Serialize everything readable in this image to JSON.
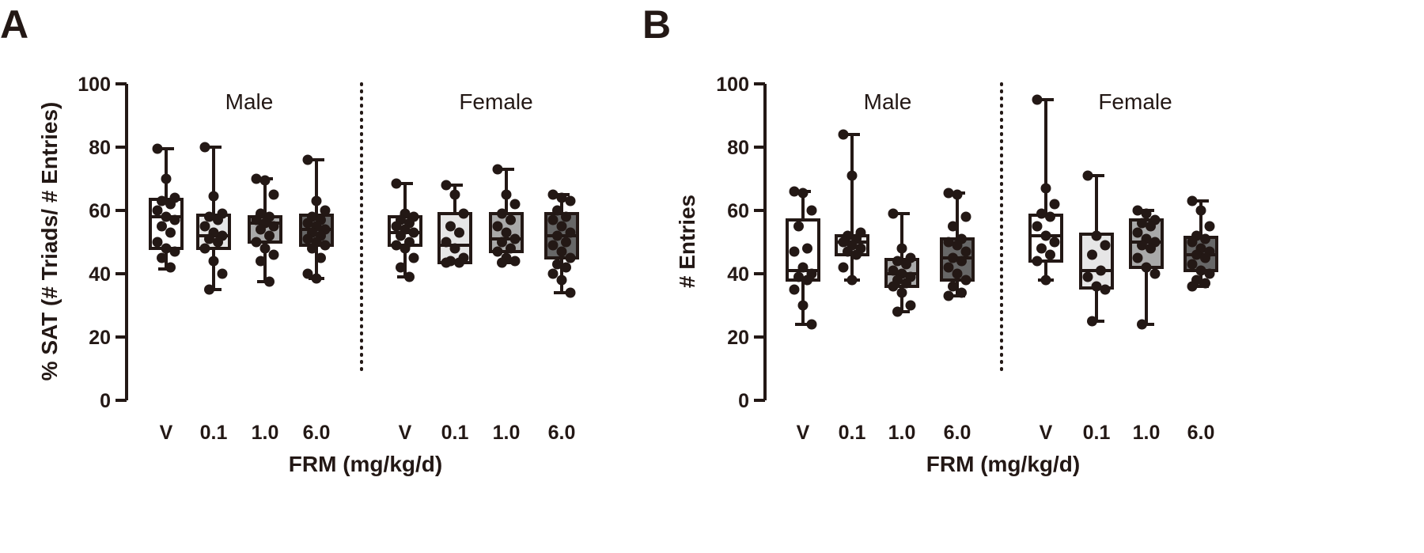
{
  "chart_data": [
    {
      "type": "boxplot",
      "panel_label": "A",
      "ylabel": "% SAT (# Triads/ # Entries)",
      "xlabel": "FRM (mg/kg/d)",
      "ylim": [
        0,
        100
      ],
      "yticks": [
        "0",
        "20",
        "40",
        "60",
        "80",
        "100"
      ],
      "categories": [
        "V",
        "0.1",
        "1.0",
        "6.0",
        "V",
        "0.1",
        "1.0",
        "6.0"
      ],
      "groups": [
        "Male",
        "Female"
      ],
      "fill_colors": [
        "#ffffff",
        "#e6e6e6",
        "#a9a9a9",
        "#676767",
        "#ffffff",
        "#e6e6e6",
        "#a9a9a9",
        "#676767"
      ],
      "boxes": [
        {
          "group": "Male",
          "dose": "V",
          "min": 41.5,
          "q1": 48,
          "median": 58,
          "q3": 63.5,
          "max": 79.5,
          "points": [
            79.5,
            70,
            64,
            63,
            62,
            60,
            58,
            57,
            55,
            53,
            50,
            48,
            47,
            45,
            42
          ]
        },
        {
          "group": "Male",
          "dose": "0.1",
          "min": 35,
          "q1": 48,
          "median": 52,
          "q3": 58.5,
          "max": 80,
          "points": [
            80,
            64.5,
            59,
            58,
            57,
            55,
            53,
            52,
            51,
            50,
            48,
            44,
            40,
            35
          ]
        },
        {
          "group": "Male",
          "dose": "1.0",
          "min": 37.5,
          "q1": 50,
          "median": 56,
          "q3": 58,
          "max": 70,
          "points": [
            70,
            69.5,
            65,
            59,
            58,
            57,
            56,
            55,
            54,
            52,
            50,
            48,
            46,
            44,
            37.5
          ]
        },
        {
          "group": "Male",
          "dose": "6.0",
          "min": 38.5,
          "q1": 49,
          "median": 54,
          "q3": 58.5,
          "max": 76,
          "points": [
            76,
            63,
            60,
            58,
            57,
            56,
            55,
            54,
            53,
            52,
            51,
            50,
            49,
            48,
            45,
            40,
            38.5
          ]
        },
        {
          "group": "Female",
          "dose": "V",
          "min": 39,
          "q1": 49,
          "median": 53,
          "q3": 58,
          "max": 68.5,
          "points": [
            68.5,
            59,
            58,
            57,
            56,
            55,
            54,
            53,
            52,
            50,
            49,
            48,
            45,
            42,
            39
          ]
        },
        {
          "group": "Female",
          "dose": "0.1",
          "min": 43.5,
          "q1": 43.5,
          "median": 49,
          "q3": 59,
          "max": 68,
          "points": [
            68,
            65,
            59,
            55,
            53,
            50,
            48,
            45,
            44,
            43.5,
            43.5
          ]
        },
        {
          "group": "Female",
          "dose": "1.0",
          "min": 43.5,
          "q1": 47,
          "median": 51,
          "q3": 59,
          "max": 73,
          "points": [
            73,
            65,
            62,
            59,
            57,
            55,
            53,
            51,
            50,
            48,
            47,
            45,
            44,
            43.5
          ]
        },
        {
          "group": "Female",
          "dose": "6.0",
          "min": 34,
          "q1": 45,
          "median": 52,
          "q3": 59,
          "max": 65,
          "points": [
            65,
            64,
            63,
            60,
            58,
            57,
            55,
            53,
            52,
            50,
            49,
            47,
            45,
            43,
            42,
            40,
            38,
            34
          ]
        }
      ]
    },
    {
      "type": "boxplot",
      "panel_label": "B",
      "ylabel": "# Entries",
      "xlabel": "FRM (mg/kg/d)",
      "ylim": [
        0,
        100
      ],
      "yticks": [
        "0",
        "20",
        "40",
        "60",
        "80",
        "100"
      ],
      "categories": [
        "V",
        "0.1",
        "1.0",
        "6.0",
        "V",
        "0.1",
        "1.0",
        "6.0"
      ],
      "groups": [
        "Male",
        "Female"
      ],
      "fill_colors": [
        "#ffffff",
        "#e6e6e6",
        "#a9a9a9",
        "#676767",
        "#ffffff",
        "#e6e6e6",
        "#a9a9a9",
        "#676767"
      ],
      "boxes": [
        {
          "group": "Male",
          "dose": "V",
          "min": 24,
          "q1": 38,
          "median": 41,
          "q3": 57,
          "max": 66,
          "points": [
            66,
            65.5,
            60,
            55,
            48,
            47,
            42,
            40,
            39,
            38,
            35,
            30,
            24
          ]
        },
        {
          "group": "Male",
          "dose": "0.1",
          "min": 38,
          "q1": 46,
          "median": 50,
          "q3": 52,
          "max": 84,
          "points": [
            84,
            71,
            53,
            52,
            51,
            50,
            49,
            48,
            47,
            46,
            42,
            38
          ]
        },
        {
          "group": "Male",
          "dose": "1.0",
          "min": 28,
          "q1": 36,
          "median": 40,
          "q3": 44.5,
          "max": 59,
          "points": [
            59,
            48,
            45,
            44,
            43,
            41,
            40,
            39,
            38,
            37,
            36,
            34,
            30,
            28
          ]
        },
        {
          "group": "Male",
          "dose": "6.0",
          "min": 33,
          "q1": 38,
          "median": 45,
          "q3": 51,
          "max": 65.5,
          "points": [
            65.5,
            65,
            58,
            55,
            51,
            50,
            49,
            47,
            45,
            44,
            42,
            40,
            38,
            36,
            34,
            33
          ]
        },
        {
          "group": "Female",
          "dose": "V",
          "min": 38,
          "q1": 44,
          "median": 52,
          "q3": 58.5,
          "max": 95,
          "points": [
            95,
            67,
            62,
            59,
            58,
            55,
            52,
            50,
            48,
            46,
            44,
            38
          ]
        },
        {
          "group": "Female",
          "dose": "0.1",
          "min": 25,
          "q1": 35.5,
          "median": 41,
          "q3": 52.5,
          "max": 71,
          "points": [
            71,
            52,
            49,
            46,
            41,
            39,
            36,
            35,
            25
          ]
        },
        {
          "group": "Female",
          "dose": "1.0",
          "min": 24,
          "q1": 42,
          "median": 50,
          "q3": 57,
          "max": 60,
          "points": [
            60,
            59,
            57,
            56,
            55,
            53,
            51,
            50,
            49,
            48,
            45,
            42,
            40,
            24
          ]
        },
        {
          "group": "Female",
          "dose": "6.0",
          "min": 36,
          "q1": 41,
          "median": 46,
          "q3": 51.5,
          "max": 63,
          "points": [
            63,
            60,
            55,
            52,
            51,
            50,
            48,
            47,
            46,
            45,
            43,
            41,
            40,
            38,
            37,
            36
          ]
        }
      ]
    }
  ]
}
